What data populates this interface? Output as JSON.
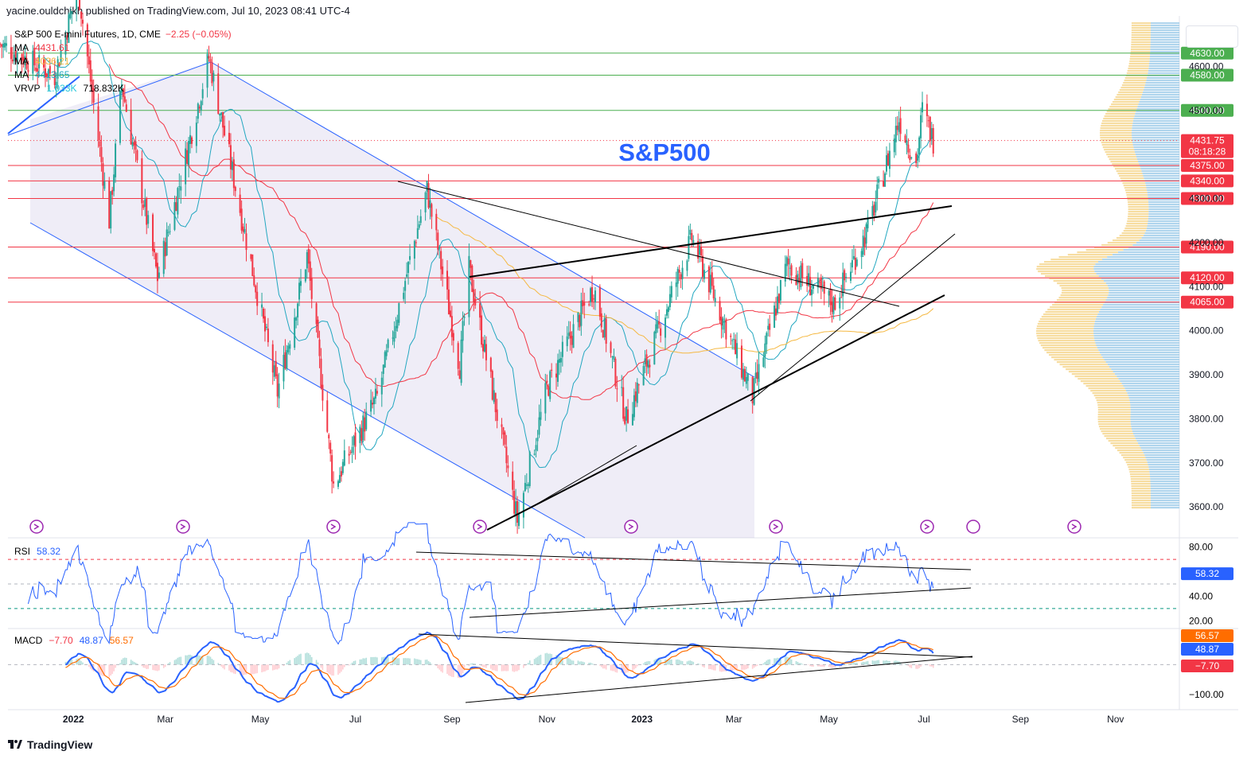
{
  "header": {
    "published": "yacine.ouldchikh published on TradingView.com, Jul 10, 2023 08:41 UTC-4"
  },
  "legend": {
    "symbol": "S&P 500 E-mini Futures, 1D, CME",
    "change": "−2.25 (−0.05%)",
    "ma1_label": "MA",
    "ma1_value": "4431.61",
    "ma2_label": "MA",
    "ma2_value": "4036.21",
    "ma3_label": "MA",
    "ma3_value": "4413.65",
    "vrvp_label": "VRVP",
    "vrvp_v1": "1.033K",
    "vrvp_v2": "718.832K"
  },
  "annotation": "S&P500",
  "footer": {
    "brand": "TradingView"
  },
  "colors": {
    "up": "#26a69a",
    "down": "#f23645",
    "ma_fast": "#22ab94",
    "ma_mid": "#f23645",
    "ma_slow": "#f5b841",
    "support": "#f23645",
    "resistance": "#4caf50",
    "channel": "#2962ff",
    "label_red": "#f23645",
    "label_green": "#4caf50",
    "rsi": "#2962ff",
    "macd": "#2962ff",
    "signal": "#ff6d00"
  },
  "chart_data": [
    {
      "type": "candlestick",
      "title": "S&P 500 E-mini Futures, 1D, CME",
      "x_ticks": [
        "2022",
        "Mar",
        "May",
        "Jul",
        "Sep",
        "Nov",
        "2023",
        "Mar",
        "May",
        "Jul",
        "Sep",
        "Nov"
      ],
      "y_ticks": [
        "4600.00",
        "4500.00",
        "4400.00",
        "4300.00",
        "4200.00",
        "4100.00",
        "4000.00",
        "3900.00",
        "3800.00",
        "3700.00",
        "3600.00"
      ],
      "ylim": [
        3530,
        4700
      ],
      "last_price": "4431.75",
      "countdown": "08:18:28",
      "levels": [
        {
          "value": 4630,
          "label": "4630.00",
          "kind": "resistance"
        },
        {
          "value": 4580,
          "label": "4580.00",
          "kind": "resistance"
        },
        {
          "value": 4500,
          "label": "4500.00",
          "kind": "resistance"
        },
        {
          "value": 4375,
          "label": "4375.00",
          "kind": "support"
        },
        {
          "value": 4340,
          "label": "4340.00",
          "kind": "support"
        },
        {
          "value": 4300,
          "label": "4300.00",
          "kind": "support"
        },
        {
          "value": 4190,
          "label": "4190.00",
          "kind": "support"
        },
        {
          "value": 4120,
          "label": "4120.00",
          "kind": "support"
        },
        {
          "value": 4065,
          "label": "4065.00",
          "kind": "support"
        }
      ],
      "price_path": [
        {
          "date": "2021-11-15",
          "price": 4650
        },
        {
          "date": "2021-12-20",
          "price": 4580
        },
        {
          "date": "2022-01-04",
          "price": 4780
        },
        {
          "date": "2022-01-24",
          "price": 4250
        },
        {
          "date": "2022-02-01",
          "price": 4560
        },
        {
          "date": "2022-02-24",
          "price": 4120
        },
        {
          "date": "2022-03-29",
          "price": 4620
        },
        {
          "date": "2022-05-12",
          "price": 3860
        },
        {
          "date": "2022-05-31",
          "price": 4170
        },
        {
          "date": "2022-06-17",
          "price": 3650
        },
        {
          "date": "2022-07-15",
          "price": 3850
        },
        {
          "date": "2022-08-16",
          "price": 4320
        },
        {
          "date": "2022-09-06",
          "price": 3920
        },
        {
          "date": "2022-09-12",
          "price": 4140
        },
        {
          "date": "2022-10-13",
          "price": 3570
        },
        {
          "date": "2022-11-01",
          "price": 3870
        },
        {
          "date": "2022-12-01",
          "price": 4100
        },
        {
          "date": "2022-12-22",
          "price": 3800
        },
        {
          "date": "2023-02-02",
          "price": 4210
        },
        {
          "date": "2023-03-13",
          "price": 3850
        },
        {
          "date": "2023-04-04",
          "price": 4150
        },
        {
          "date": "2023-05-04",
          "price": 4060
        },
        {
          "date": "2023-05-26",
          "price": 4230
        },
        {
          "date": "2023-06-15",
          "price": 4480
        },
        {
          "date": "2023-06-26",
          "price": 4380
        },
        {
          "date": "2023-06-30",
          "price": 4500
        },
        {
          "date": "2023-07-07",
          "price": 4432
        }
      ]
    },
    {
      "type": "line",
      "title": "RSI",
      "value_label": "58.32",
      "y_ticks": [
        "80.00",
        "40.00",
        "20.00"
      ],
      "ylim": [
        15,
        85
      ],
      "bands": [
        70,
        50,
        30
      ]
    },
    {
      "type": "line",
      "title": "MACD",
      "values": {
        "hist": "−7.70",
        "macd": "48.87",
        "signal": "56.57"
      },
      "y_ticks": [
        "−100.00"
      ],
      "ylim": [
        -145,
        110
      ]
    }
  ]
}
